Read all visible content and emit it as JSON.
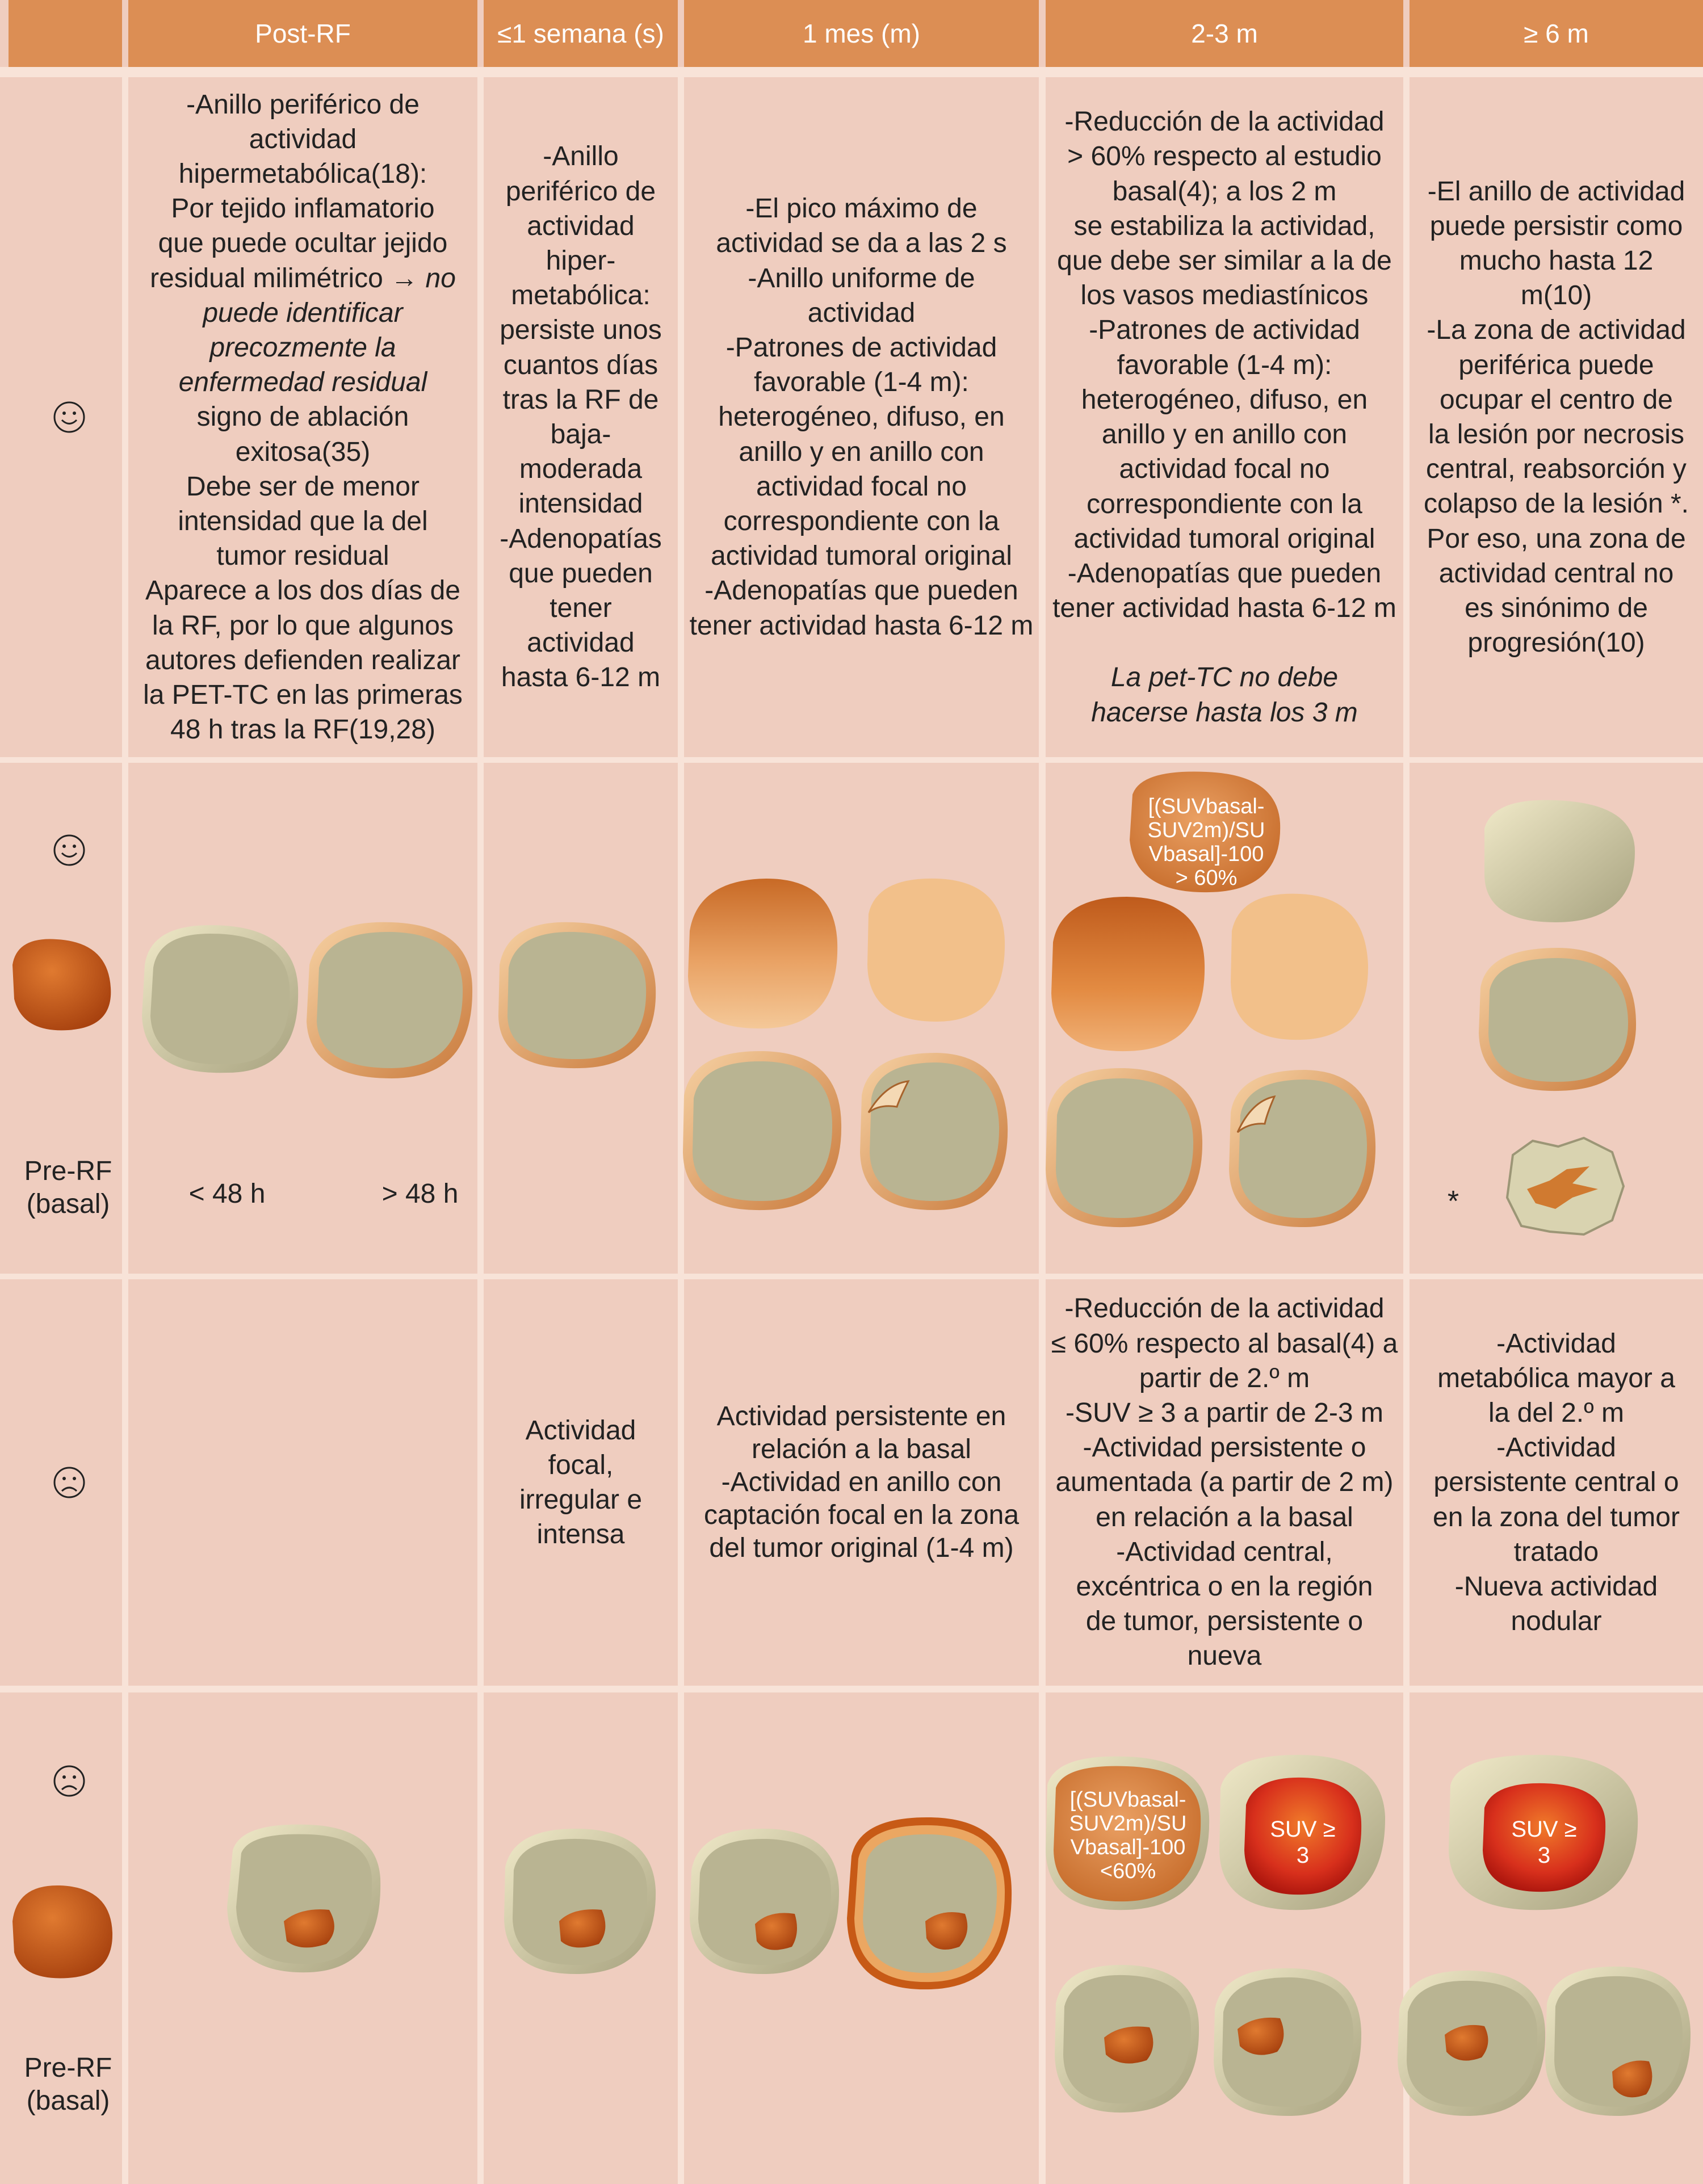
{
  "headers": [
    "Post-RF",
    "≤1 semana (s)",
    "1 mes (m)",
    "2-3 m",
    "≥ 6 m"
  ],
  "favorable": {
    "face_icon": "smiley-icon",
    "post_rf": {
      "l1": "-Anillo periférico de",
      "l2": "actividad",
      "l3": "hipermetabólica(18):",
      "l4": "Por tejido inflamatorio",
      "l5": "que puede ocultar jejido",
      "l6a": "residual milimétrico → ",
      "l6b": "no",
      "l7": "puede identificar",
      "l8": "precozmente la",
      "l9": "enfermedad residual",
      "l10": "signo de ablación",
      "l11": "exitosa(35)",
      "l12": "Debe ser de menor",
      "l13": "intensidad que la del",
      "l14": "tumor residual",
      "l15": "Aparece a los dos días de",
      "l16": "la RF, por lo que algunos",
      "l17": "autores defienden realizar",
      "l18": "la PET-TC en las primeras",
      "l19": "48 h tras la RF(19,28)"
    },
    "week": [
      "-Anillo",
      "periférico de",
      "actividad",
      "hiper-",
      "metabólica:",
      "persiste unos",
      "cuantos días",
      "tras la RF de",
      "baja-",
      "moderada",
      "intensidad",
      "-Adenopatías",
      "que pueden",
      "tener",
      "actividad",
      "hasta 6-12 m"
    ],
    "month": [
      "-El pico máximo de",
      "actividad se da a las 2 s",
      "-Anillo uniforme de",
      "actividad",
      "-Patrones de actividad",
      "favorable (1-4 m):",
      "heterogéneo, difuso, en",
      "anillo y en anillo con",
      "actividad focal no",
      "correspondiente con la",
      "actividad tumoral original",
      "-Adenopatías que pueden",
      "tener actividad hasta 6-12 m"
    ],
    "m23": [
      "-Reducción de la actividad",
      "> 60% respecto al estudio",
      "basal(4); a los 2 m",
      "se estabiliza la actividad,",
      "que debe ser similar a la de",
      "los vasos mediastínicos",
      "-Patrones de actividad",
      "favorable (1-4 m):",
      "heterogéneo, difuso, en",
      "anillo y en anillo con",
      "actividad focal no",
      "correspondiente con la",
      "actividad tumoral original",
      "-Adenopatías que pueden",
      "tener actividad hasta 6-12 m"
    ],
    "m23_note": [
      "La pet-TC no debe",
      "hacerse hasta los 3 m"
    ],
    "m6": [
      "-El anillo de actividad",
      "puede persistir como",
      "mucho hasta 12",
      "m(10)",
      "-La zona de actividad",
      "periférica puede",
      "ocupar el centro de",
      "la lesión por necrosis",
      "central, reabsorción y",
      "colapso de la lesión *.",
      "Por eso, una zona de",
      "actividad central no",
      "es sinónimo de",
      "progresión(10)"
    ]
  },
  "favorable_images": {
    "pre_rf_label": [
      "Pre-RF",
      "(basal)"
    ],
    "lt48": "< 48 h",
    "gt48": "> 48 h",
    "suv_bubble": [
      "[(SUVbasal-",
      "SUV2m)/SU",
      "Vbasal]-100",
      "> 60%"
    ],
    "asterisk": "*"
  },
  "unfavorable": {
    "face_icon": "frown-icon",
    "week": [
      "Actividad",
      "focal,",
      "irregular e",
      "intensa"
    ],
    "month": [
      "Actividad persistente en",
      "relación a la basal",
      "-Actividad en anillo con",
      "captación focal en la zona",
      "del tumor original (1-4 m)"
    ],
    "m23": [
      "-Reducción de la actividad",
      "≤ 60% respecto al basal(4) a",
      "partir de 2.º m",
      "-SUV ≥ 3 a partir de 2-3 m",
      "-Actividad persistente o",
      "aumentada (a partir de 2 m)",
      "en relación a la basal",
      "-Actividad central,",
      "excéntrica o en la región",
      "de tumor, persistente o",
      "nueva"
    ],
    "m6": [
      "-Actividad",
      "metabólica mayor a",
      "la del 2.º m",
      "-Actividad",
      "persistente central o",
      "en la zona del tumor",
      "tratado",
      "-Nueva actividad",
      "nodular"
    ]
  },
  "unfavorable_images": {
    "pre_rf_label": [
      "Pre-RF",
      "(basal)"
    ],
    "suv_bubble": [
      "[(SUVbasal-",
      "SUV2m)/SU",
      "Vbasal]-100",
      "<60%"
    ],
    "suv_ge3_m23": [
      "SUV ≥",
      "3"
    ],
    "suv_ge3_m6": [
      "SUV ≥",
      "3"
    ]
  },
  "colors": {
    "header": "#dc8e54",
    "cell": "#f2cbb8",
    "grid": "#f8e3d8",
    "tumor": "#c9591a",
    "ablation": "#b9b492"
  }
}
